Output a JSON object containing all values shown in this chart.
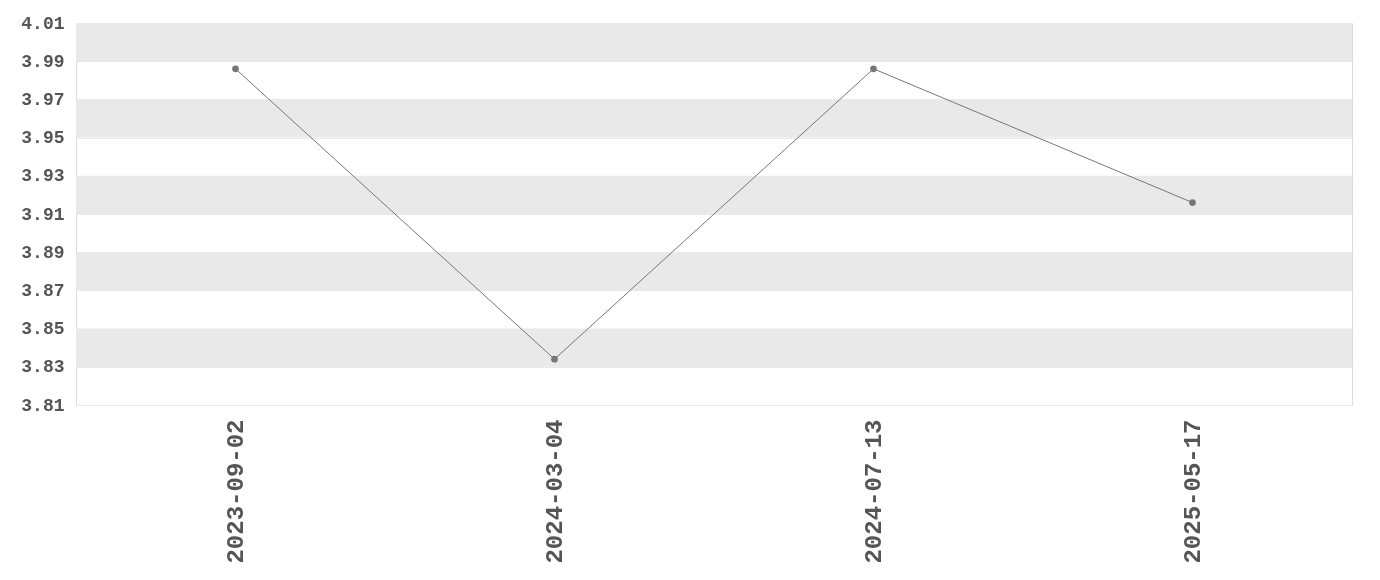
{
  "chart_data": {
    "type": "line",
    "categories": [
      "2023-09-02",
      "2024-03-04",
      "2024-07-13",
      "2025-05-17"
    ],
    "series": [
      {
        "color": "#777777",
        "values": [
          3.986,
          3.834,
          3.986,
          3.916
        ]
      }
    ],
    "ylim": [
      3.81,
      4.01
    ],
    "yticks": [
      3.81,
      3.83,
      3.85,
      3.87,
      3.89,
      3.91,
      3.93,
      3.95,
      3.97,
      3.99,
      4.01
    ],
    "grid": "y",
    "marker": "circle",
    "line_style": "solid"
  }
}
